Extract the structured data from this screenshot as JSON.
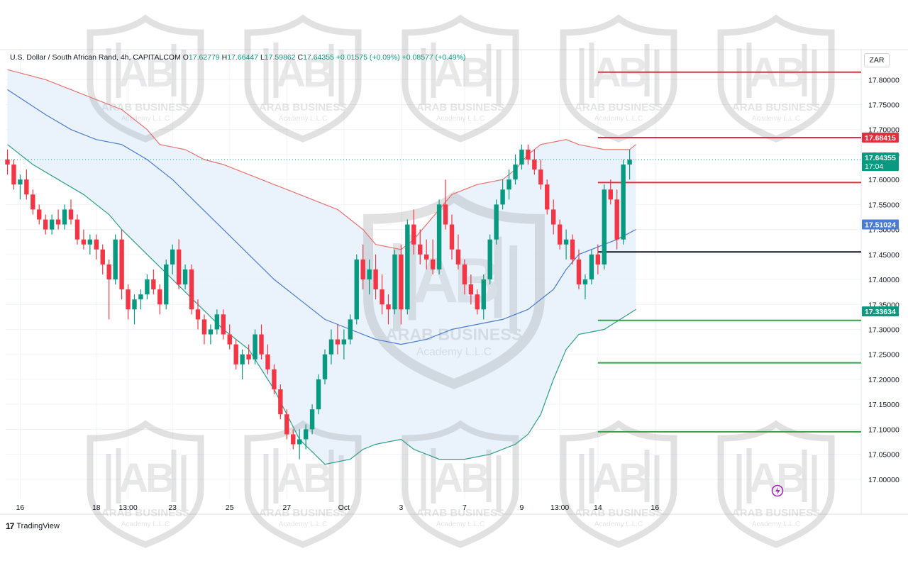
{
  "header": {
    "symbol": "U.S. Dollar / South African Rand, 4h, CAPITALCOM",
    "open_label": "O",
    "open": "17.62779",
    "high_label": "H",
    "high": "17.66447",
    "low_label": "L",
    "low": "17.59862",
    "close_label": "C",
    "close": "17.64355",
    "change1": "+0.01575 (+0.09%)",
    "change2": "+0.08577 (+0.49%)"
  },
  "currency_button": "ZAR",
  "brand": {
    "logo": "17",
    "name": "TradingView"
  },
  "watermark": {
    "line1": "ARAB BUSINESS",
    "line2": "Academy L.L.C"
  },
  "colors": {
    "up": "#089981",
    "down": "#f23645",
    "upper_band": "#e5736f",
    "middle_band": "#4a7bd0",
    "lower_band": "#2f9e86",
    "band_fill": "#e6f1fb",
    "resistance": "#e0303f",
    "support": "#2fa34a",
    "pivot": "#131722"
  },
  "chart_data": {
    "type": "candlestick",
    "instrument": "USD/ZAR",
    "timeframe": "4h",
    "ylim": [
      16.96,
      17.86
    ],
    "yticks": [
      "17.80000",
      "17.75000",
      "17.70000",
      "17.65000",
      "17.60000",
      "17.55000",
      "17.50000",
      "17.45000",
      "17.40000",
      "17.35000",
      "17.30000",
      "17.25000",
      "17.20000",
      "17.15000",
      "17.10000",
      "17.05000",
      "17.00000"
    ],
    "xticks": [
      {
        "label": "16",
        "i": 2
      },
      {
        "label": "18",
        "i": 14
      },
      {
        "label": "13:00",
        "i": 19
      },
      {
        "label": "23",
        "i": 26
      },
      {
        "label": "25",
        "i": 35
      },
      {
        "label": "27",
        "i": 44
      },
      {
        "label": "Oct",
        "i": 53
      },
      {
        "label": "3",
        "i": 62
      },
      {
        "label": "7",
        "i": 72
      },
      {
        "label": "9",
        "i": 81
      },
      {
        "label": "13:00",
        "i": 87
      },
      {
        "label": "14",
        "i": 93
      },
      {
        "label": "16",
        "i": 102
      }
    ],
    "candles": [
      [
        17.64,
        17.66,
        17.61,
        17.63
      ],
      [
        17.63,
        17.64,
        17.58,
        17.59
      ],
      [
        17.59,
        17.61,
        17.56,
        17.6
      ],
      [
        17.6,
        17.62,
        17.56,
        17.57
      ],
      [
        17.57,
        17.58,
        17.53,
        17.54
      ],
      [
        17.54,
        17.55,
        17.51,
        17.52
      ],
      [
        17.52,
        17.53,
        17.49,
        17.5
      ],
      [
        17.5,
        17.53,
        17.49,
        17.52
      ],
      [
        17.52,
        17.54,
        17.5,
        17.51
      ],
      [
        17.51,
        17.55,
        17.5,
        17.54
      ],
      [
        17.54,
        17.56,
        17.51,
        17.52
      ],
      [
        17.52,
        17.53,
        17.47,
        17.48
      ],
      [
        17.48,
        17.5,
        17.46,
        17.47
      ],
      [
        17.47,
        17.49,
        17.45,
        17.48
      ],
      [
        17.48,
        17.49,
        17.44,
        17.46
      ],
      [
        17.46,
        17.47,
        17.41,
        17.43
      ],
      [
        17.43,
        17.44,
        17.32,
        17.4
      ],
      [
        17.4,
        17.49,
        17.39,
        17.48
      ],
      [
        17.48,
        17.5,
        17.36,
        17.38
      ],
      [
        17.38,
        17.39,
        17.32,
        17.34
      ],
      [
        17.34,
        17.37,
        17.31,
        17.36
      ],
      [
        17.36,
        17.38,
        17.34,
        17.37
      ],
      [
        17.37,
        17.41,
        17.36,
        17.4
      ],
      [
        17.4,
        17.42,
        17.37,
        17.38
      ],
      [
        17.38,
        17.39,
        17.33,
        17.35
      ],
      [
        17.35,
        17.44,
        17.34,
        17.43
      ],
      [
        17.43,
        17.47,
        17.41,
        17.46
      ],
      [
        17.46,
        17.48,
        17.38,
        17.39
      ],
      [
        17.39,
        17.43,
        17.38,
        17.42
      ],
      [
        17.42,
        17.43,
        17.33,
        17.34
      ],
      [
        17.34,
        17.36,
        17.3,
        17.32
      ],
      [
        17.32,
        17.33,
        17.27,
        17.29
      ],
      [
        17.29,
        17.31,
        17.27,
        17.3
      ],
      [
        17.3,
        17.34,
        17.29,
        17.33
      ],
      [
        17.33,
        17.34,
        17.28,
        17.29
      ],
      [
        17.29,
        17.31,
        17.26,
        17.27
      ],
      [
        17.27,
        17.28,
        17.22,
        17.23
      ],
      [
        17.23,
        17.26,
        17.2,
        17.25
      ],
      [
        17.25,
        17.27,
        17.23,
        17.24
      ],
      [
        17.24,
        17.3,
        17.23,
        17.29
      ],
      [
        17.29,
        17.31,
        17.24,
        17.25
      ],
      [
        17.25,
        17.27,
        17.21,
        17.22
      ],
      [
        17.22,
        17.23,
        17.17,
        17.18
      ],
      [
        17.18,
        17.19,
        17.12,
        17.13
      ],
      [
        17.13,
        17.14,
        17.08,
        17.09
      ],
      [
        17.09,
        17.1,
        17.06,
        17.07
      ],
      [
        17.07,
        17.1,
        17.04,
        17.08
      ],
      [
        17.08,
        17.11,
        17.06,
        17.1
      ],
      [
        17.1,
        17.15,
        17.09,
        17.14
      ],
      [
        17.14,
        17.21,
        17.13,
        17.2
      ],
      [
        17.2,
        17.26,
        17.19,
        17.25
      ],
      [
        17.25,
        17.3,
        17.23,
        17.28
      ],
      [
        17.28,
        17.31,
        17.25,
        17.27
      ],
      [
        17.27,
        17.3,
        17.24,
        17.28
      ],
      [
        17.28,
        17.33,
        17.27,
        17.32
      ],
      [
        17.32,
        17.45,
        17.31,
        17.44
      ],
      [
        17.44,
        17.47,
        17.38,
        17.4
      ],
      [
        17.4,
        17.44,
        17.37,
        17.42
      ],
      [
        17.42,
        17.45,
        17.36,
        17.38
      ],
      [
        17.38,
        17.41,
        17.33,
        17.35
      ],
      [
        17.35,
        17.37,
        17.31,
        17.34
      ],
      [
        17.34,
        17.46,
        17.33,
        17.45
      ],
      [
        17.45,
        17.47,
        17.31,
        17.34
      ],
      [
        17.34,
        17.52,
        17.33,
        17.51
      ],
      [
        17.51,
        17.54,
        17.45,
        17.47
      ],
      [
        17.47,
        17.5,
        17.43,
        17.45
      ],
      [
        17.45,
        17.48,
        17.42,
        17.44
      ],
      [
        17.44,
        17.48,
        17.41,
        17.42
      ],
      [
        17.42,
        17.56,
        17.41,
        17.55
      ],
      [
        17.55,
        17.6,
        17.5,
        17.51
      ],
      [
        17.51,
        17.53,
        17.44,
        17.46
      ],
      [
        17.46,
        17.49,
        17.42,
        17.43
      ],
      [
        17.43,
        17.44,
        17.37,
        17.39
      ],
      [
        17.39,
        17.41,
        17.35,
        17.37
      ],
      [
        17.37,
        17.38,
        17.33,
        17.34
      ],
      [
        17.34,
        17.41,
        17.32,
        17.4
      ],
      [
        17.4,
        17.49,
        17.39,
        17.48
      ],
      [
        17.48,
        17.56,
        17.47,
        17.55
      ],
      [
        17.55,
        17.6,
        17.54,
        17.58
      ],
      [
        17.58,
        17.62,
        17.56,
        17.6
      ],
      [
        17.6,
        17.65,
        17.59,
        17.63
      ],
      [
        17.63,
        17.67,
        17.62,
        17.66
      ],
      [
        17.66,
        17.67,
        17.63,
        17.64
      ],
      [
        17.64,
        17.66,
        17.61,
        17.62
      ],
      [
        17.62,
        17.64,
        17.58,
        17.59
      ],
      [
        17.59,
        17.6,
        17.53,
        17.54
      ],
      [
        17.54,
        17.56,
        17.49,
        17.51
      ],
      [
        17.51,
        17.52,
        17.46,
        17.47
      ],
      [
        17.47,
        17.5,
        17.44,
        17.48
      ],
      [
        17.48,
        17.49,
        17.43,
        17.44
      ],
      [
        17.44,
        17.46,
        17.38,
        17.39
      ],
      [
        17.39,
        17.41,
        17.36,
        17.4
      ],
      [
        17.4,
        17.46,
        17.39,
        17.45
      ],
      [
        17.45,
        17.47,
        17.41,
        17.43
      ],
      [
        17.43,
        17.59,
        17.42,
        17.58
      ],
      [
        17.58,
        17.6,
        17.55,
        17.56
      ],
      [
        17.56,
        17.58,
        17.46,
        17.48
      ],
      [
        17.48,
        17.64,
        17.47,
        17.63
      ],
      [
        17.63,
        17.66,
        17.6,
        17.64
      ]
    ],
    "bands": {
      "upper": [
        [
          0,
          17.82
        ],
        [
          6,
          17.8
        ],
        [
          10,
          17.78
        ],
        [
          14,
          17.76
        ],
        [
          16,
          17.75
        ],
        [
          18,
          17.74
        ],
        [
          20,
          17.72
        ],
        [
          22,
          17.7
        ],
        [
          24,
          17.67
        ],
        [
          28,
          17.66
        ],
        [
          31,
          17.64
        ],
        [
          34,
          17.63
        ],
        [
          36,
          17.62
        ],
        [
          38,
          17.61
        ],
        [
          40,
          17.6
        ],
        [
          44,
          17.58
        ],
        [
          48,
          17.56
        ],
        [
          50,
          17.55
        ],
        [
          52,
          17.54
        ],
        [
          54,
          17.52
        ],
        [
          56,
          17.5
        ],
        [
          58,
          17.47
        ],
        [
          62,
          17.46
        ],
        [
          64,
          17.48
        ],
        [
          66,
          17.51
        ],
        [
          68,
          17.54
        ],
        [
          70,
          17.57
        ],
        [
          72,
          17.58
        ],
        [
          74,
          17.59
        ],
        [
          78,
          17.6
        ],
        [
          80,
          17.62
        ],
        [
          82,
          17.65
        ],
        [
          84,
          17.67
        ],
        [
          88,
          17.68
        ],
        [
          90,
          17.67
        ],
        [
          94,
          17.66
        ],
        [
          98,
          17.66
        ],
        [
          99,
          17.67
        ]
      ],
      "middle": [
        [
          0,
          17.78
        ],
        [
          6,
          17.73
        ],
        [
          10,
          17.7
        ],
        [
          14,
          17.68
        ],
        [
          18,
          17.67
        ],
        [
          22,
          17.64
        ],
        [
          26,
          17.6
        ],
        [
          30,
          17.55
        ],
        [
          34,
          17.5
        ],
        [
          38,
          17.45
        ],
        [
          42,
          17.4
        ],
        [
          46,
          17.36
        ],
        [
          50,
          17.32
        ],
        [
          54,
          17.3
        ],
        [
          58,
          17.28
        ],
        [
          62,
          17.27
        ],
        [
          66,
          17.28
        ],
        [
          70,
          17.3
        ],
        [
          74,
          17.31
        ],
        [
          78,
          17.32
        ],
        [
          82,
          17.34
        ],
        [
          86,
          17.38
        ],
        [
          88,
          17.42
        ],
        [
          90,
          17.45
        ],
        [
          94,
          17.47
        ],
        [
          96,
          17.48
        ],
        [
          99,
          17.5
        ]
      ],
      "lower": [
        [
          0,
          17.67
        ],
        [
          4,
          17.63
        ],
        [
          8,
          17.6
        ],
        [
          12,
          17.57
        ],
        [
          16,
          17.53
        ],
        [
          18,
          17.5
        ],
        [
          22,
          17.45
        ],
        [
          26,
          17.4
        ],
        [
          30,
          17.35
        ],
        [
          34,
          17.3
        ],
        [
          38,
          17.26
        ],
        [
          42,
          17.18
        ],
        [
          46,
          17.08
        ],
        [
          50,
          17.03
        ],
        [
          54,
          17.04
        ],
        [
          56,
          17.06
        ],
        [
          58,
          17.07
        ],
        [
          62,
          17.08
        ],
        [
          64,
          17.06
        ],
        [
          66,
          17.05
        ],
        [
          68,
          17.04
        ],
        [
          72,
          17.04
        ],
        [
          76,
          17.05
        ],
        [
          80,
          17.07
        ],
        [
          82,
          17.09
        ],
        [
          84,
          17.13
        ],
        [
          86,
          17.2
        ],
        [
          88,
          17.26
        ],
        [
          90,
          17.29
        ],
        [
          94,
          17.3
        ],
        [
          99,
          17.34
        ]
      ]
    },
    "levels": [
      {
        "price": 17.815,
        "role": "resistance",
        "from": 93
      },
      {
        "price": 17.684,
        "role": "resistance",
        "from": 93
      },
      {
        "price": 17.594,
        "role": "resistance",
        "from": 93
      },
      {
        "price": 17.455,
        "role": "pivot",
        "from": 93
      },
      {
        "price": 17.318,
        "role": "support",
        "from": 93
      },
      {
        "price": 17.233,
        "role": "support",
        "from": 93
      },
      {
        "price": 17.095,
        "role": "support",
        "from": 93
      }
    ],
    "price_labels": [
      {
        "text": "17.68415",
        "price": 17.684,
        "role": "upper"
      },
      {
        "text": "17.64355",
        "sub": "17:04",
        "price": 17.644,
        "role": "last"
      },
      {
        "text": "17.51024",
        "price": 17.51,
        "role": "middle"
      },
      {
        "text": "17.33634",
        "price": 17.336,
        "role": "lower"
      }
    ]
  }
}
